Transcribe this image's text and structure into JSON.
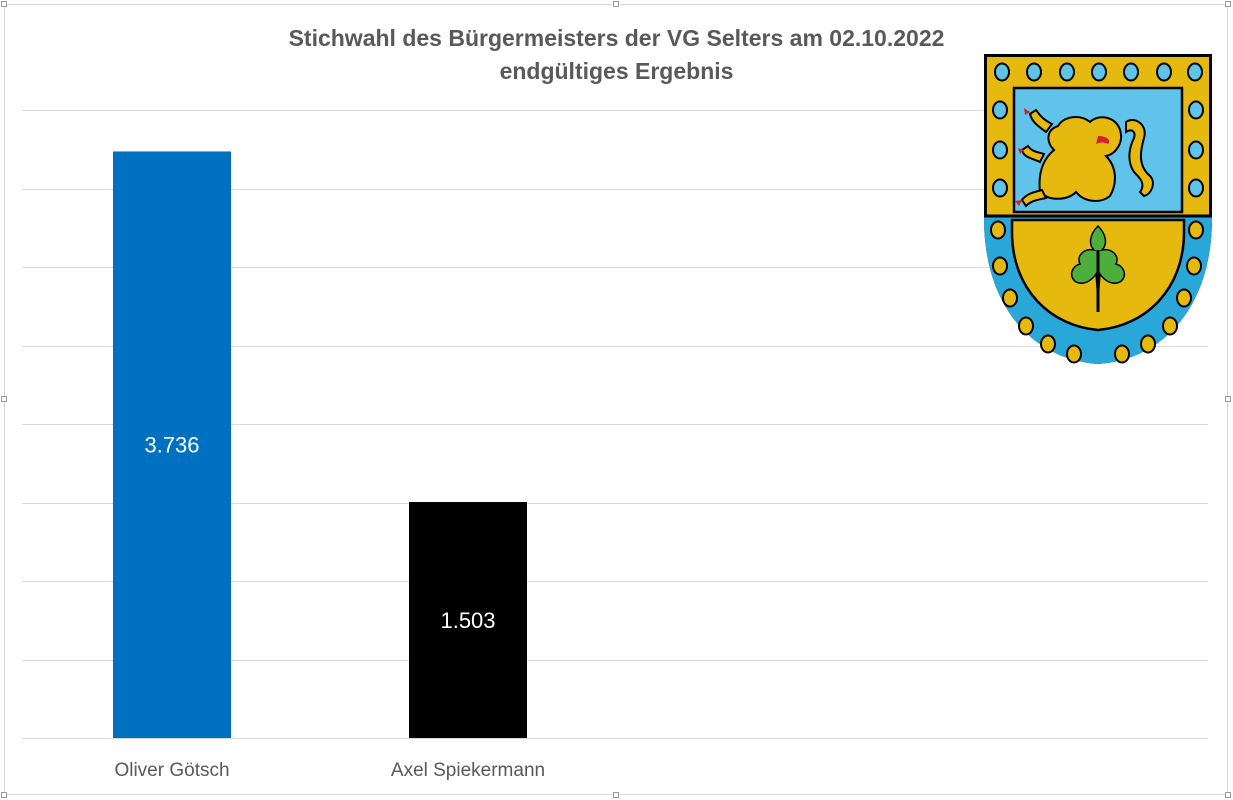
{
  "chart_data": {
    "type": "bar",
    "title": "Stichwahl des Bürgermeisters der VG Selters am 02.10.2022",
    "subtitle": "endgültiges Ergebnis",
    "categories": [
      "Oliver Götsch",
      "Axel Spiekermann"
    ],
    "values": [
      3736,
      1503
    ],
    "value_labels": [
      "3.736",
      "1.503"
    ],
    "colors": [
      "#0070c0",
      "#000000"
    ],
    "ylim": [
      0,
      4000
    ],
    "gridlines": true,
    "axis_labels_visible": false,
    "legend": "none"
  },
  "emblem": {
    "icon": "coat-of-arms-lion-oak-icon"
  }
}
